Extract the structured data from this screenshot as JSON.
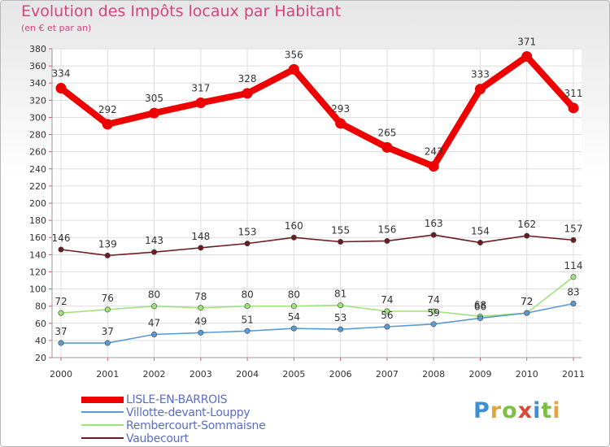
{
  "chart_data": {
    "type": "line",
    "title": "Evolution des Impôts locaux par Habitant",
    "subtitle": "(en € et par an)",
    "x": [
      "2000",
      "2001",
      "2002",
      "2003",
      "2004",
      "2005",
      "2006",
      "2007",
      "2008",
      "2009",
      "2010",
      "2011"
    ],
    "ylim": [
      20,
      380
    ],
    "yticks": [
      "20",
      "40",
      "60",
      "80",
      "100",
      "120",
      "140",
      "160",
      "180",
      "200",
      "220",
      "240",
      "260",
      "280",
      "300",
      "320",
      "340",
      "360",
      "380"
    ],
    "grid": true,
    "legend_position": "bottom-left",
    "series": [
      {
        "name": "Vaubecourt",
        "color": "#6b1b22",
        "values": [
          146,
          139,
          143,
          148,
          153,
          160,
          155,
          156,
          163,
          154,
          162,
          157
        ],
        "labels": [
          "146",
          "139",
          "143",
          "148",
          "153",
          "160",
          "155",
          "156",
          "163",
          "154",
          "162",
          "157"
        ]
      },
      {
        "name": "Rembercourt-Sommaisne",
        "color": "#9ee37a",
        "values": [
          72,
          76,
          80,
          78,
          80,
          80,
          81,
          74,
          74,
          68,
          72,
          114
        ],
        "labels": [
          "72",
          "76",
          "80",
          "78",
          "80",
          "80",
          "81",
          "74",
          "74",
          "68",
          "72",
          "114"
        ]
      },
      {
        "name": "Villotte-devant-Louppy",
        "color": "#5b9bd5",
        "values": [
          37,
          37,
          47,
          49,
          51,
          54,
          53,
          56,
          59,
          66,
          72,
          83
        ],
        "labels": [
          "37",
          "37",
          "47",
          "49",
          "51",
          "54",
          "53",
          "56",
          "59",
          "66",
          "72",
          "83"
        ]
      },
      {
        "name": "LISLE-EN-BARROIS",
        "color": "#ee0000",
        "values": [
          334,
          292,
          305,
          317,
          328,
          356,
          293,
          265,
          243,
          333,
          371,
          311
        ],
        "labels": [
          "334",
          "292",
          "305",
          "317",
          "328",
          "356",
          "293",
          "265",
          "243",
          "333",
          "371",
          "311"
        ]
      }
    ]
  },
  "legend": {
    "items": [
      {
        "label": "LISLE-EN-BARROIS",
        "color": "#ee0000"
      },
      {
        "label": "Villotte-devant-Louppy",
        "color": "#5b9bd5"
      },
      {
        "label": "Rembercourt-Sommaisne",
        "color": "#9ee37a"
      },
      {
        "label": "Vaubecourt",
        "color": "#6b1b22"
      }
    ]
  },
  "logo": {
    "text": "Proxiti"
  }
}
